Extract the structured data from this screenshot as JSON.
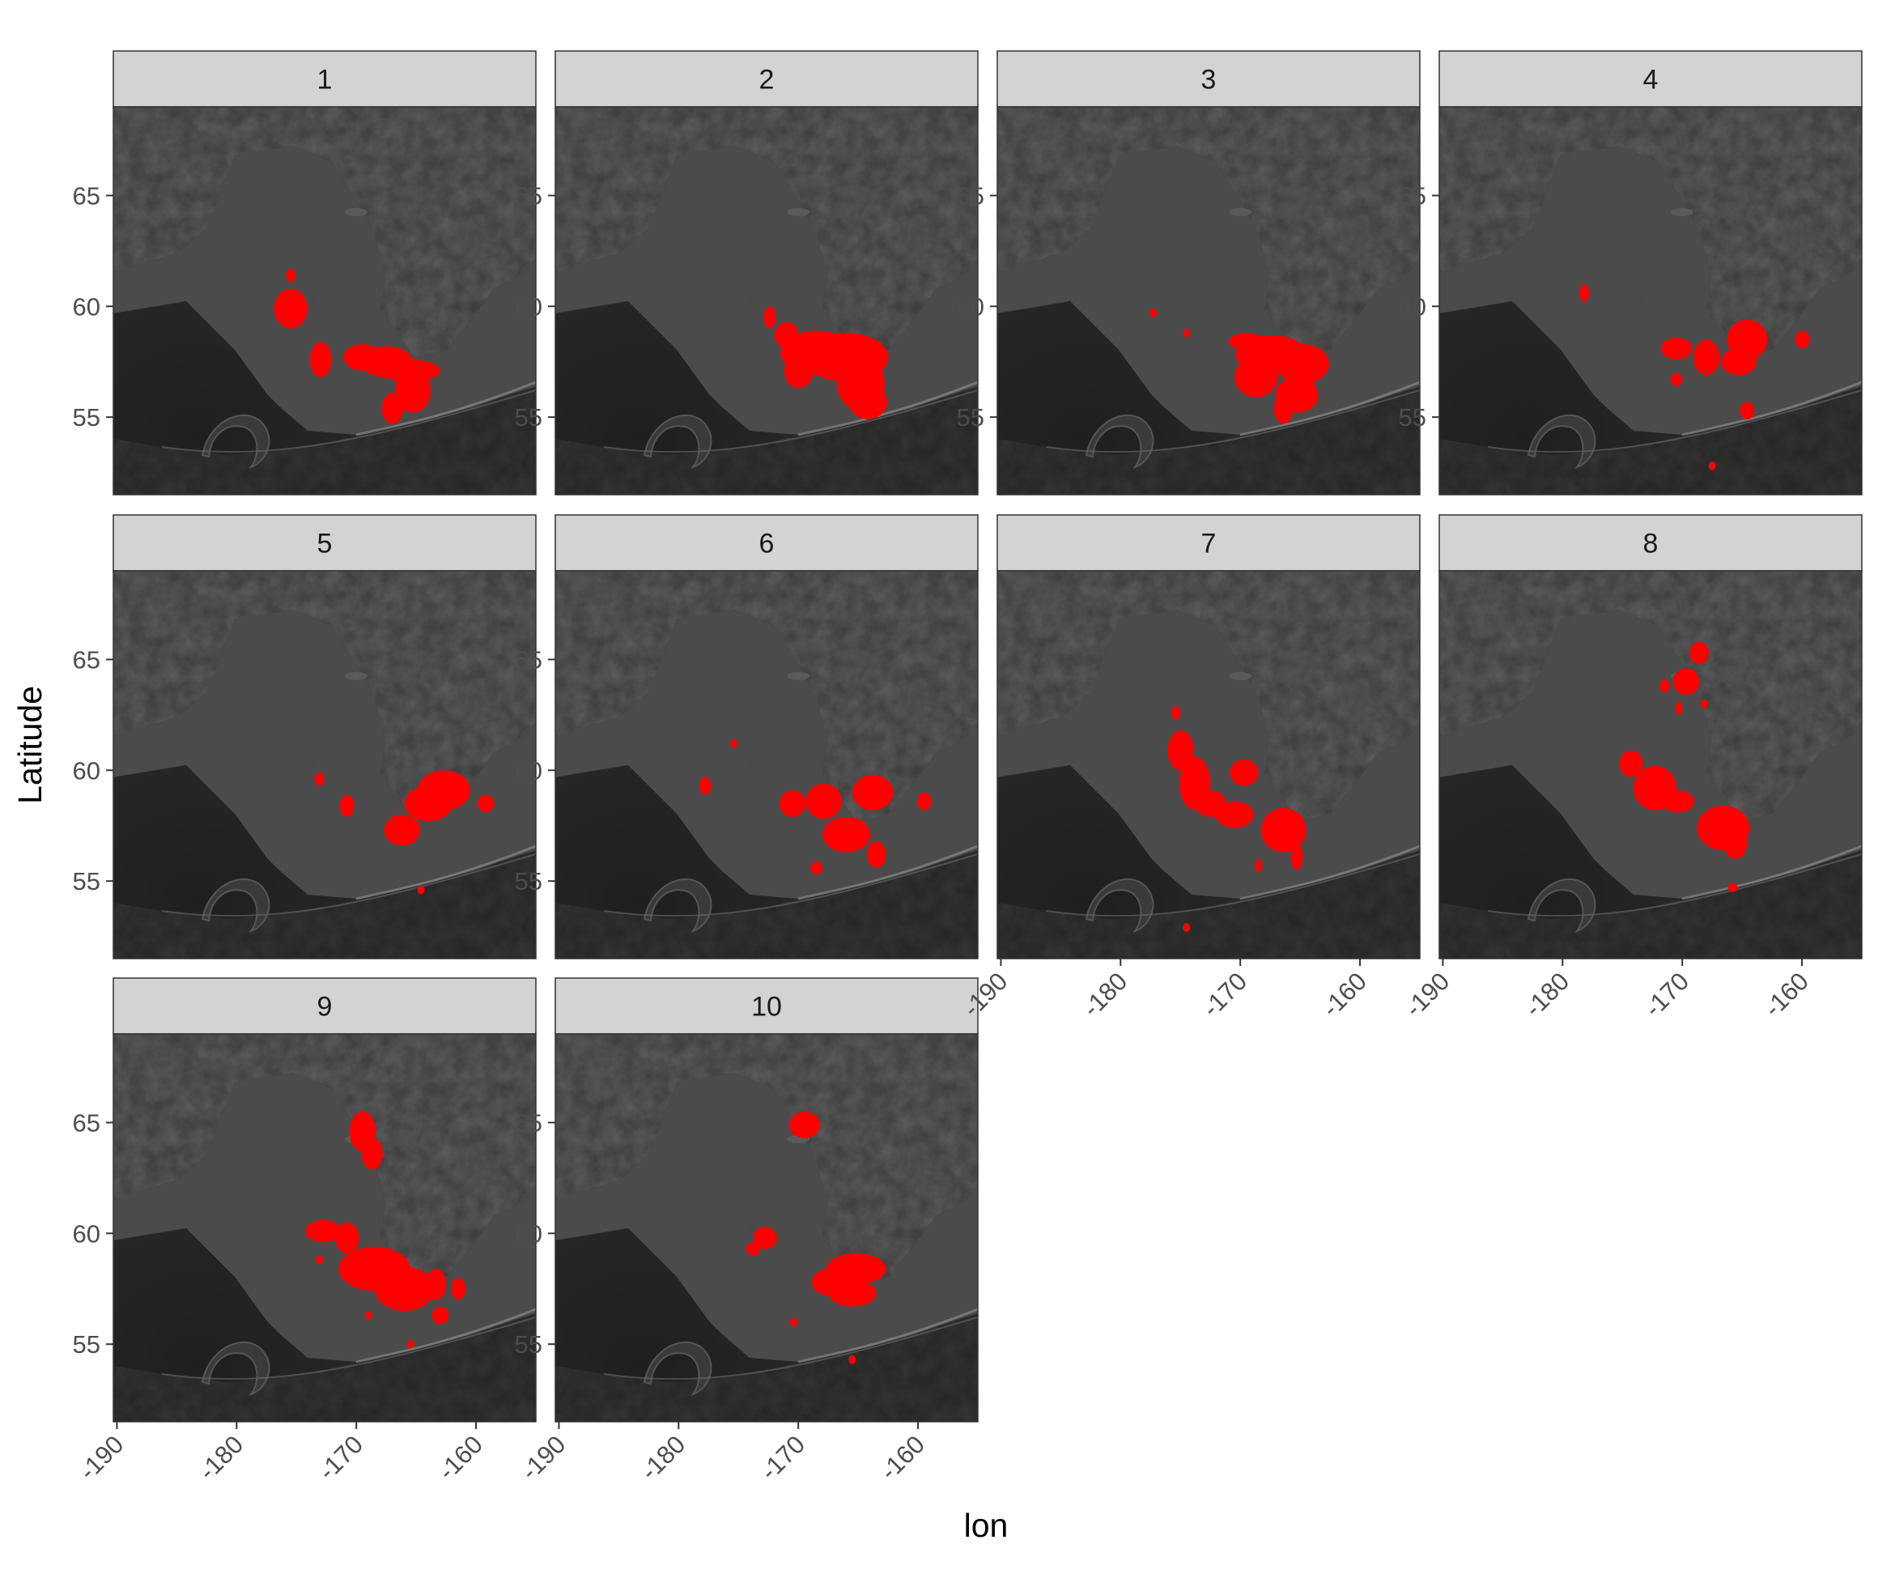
{
  "chart_data": {
    "type": "faceted-map",
    "xlabel": "lon",
    "ylabel": "Latitude",
    "x_ticks": [
      -190,
      -180,
      -170,
      -160
    ],
    "y_ticks": [
      55,
      60,
      65
    ],
    "xlim": [
      -190.3,
      -155
    ],
    "ylim": [
      51.5,
      69.0
    ],
    "colors": {
      "highlight": "#ff0000",
      "strip_fill": "#d3d3d3",
      "panel_border": "#333333",
      "land": "#3f3f3f",
      "shelf": "#4b4b4b",
      "deep_ocean": "#2b2b2b"
    },
    "facets": [
      {
        "label": "1",
        "x_axis_shown": false,
        "y_axis_shown": true,
        "regions": [
          [
            -175.5,
            59.9,
            1.4,
            0.9
          ],
          [
            -173,
            57.6,
            0.9,
            0.8
          ],
          [
            -169.5,
            57.7,
            1.6,
            0.6
          ],
          [
            -167.5,
            57.5,
            2.2,
            0.7
          ],
          [
            -165.6,
            57.1,
            2.6,
            0.5
          ],
          [
            -165.3,
            56.2,
            1.5,
            1
          ],
          [
            -167,
            55.4,
            0.9,
            0.7
          ],
          [
            -175.5,
            61.4,
            0.4,
            0.3
          ]
        ]
      },
      {
        "label": "2",
        "x_axis_shown": false,
        "y_axis_shown": true,
        "regions": [
          [
            -172.4,
            59.5,
            0.5,
            0.5
          ],
          [
            -171,
            58.7,
            1,
            0.6
          ],
          [
            -168.5,
            57.9,
            3,
            1
          ],
          [
            -166,
            57.7,
            3.5,
            1.1
          ],
          [
            -164.8,
            56.5,
            2,
            1.2
          ],
          [
            -164.2,
            55.7,
            1.6,
            0.8
          ],
          [
            -170,
            57.1,
            1.2,
            0.8
          ],
          [
            -164.3,
            57.3,
            1.4,
            0.5
          ]
        ]
      },
      {
        "label": "3",
        "x_axis_shown": false,
        "y_axis_shown": true,
        "regions": [
          [
            -169.5,
            58.4,
            1.5,
            0.4
          ],
          [
            -167.4,
            57.8,
            3,
            0.9
          ],
          [
            -168.7,
            56.8,
            1.8,
            0.9
          ],
          [
            -164.8,
            57.4,
            2.2,
            0.9
          ],
          [
            -165.3,
            56,
            1.8,
            0.8
          ],
          [
            -166.4,
            55.4,
            0.8,
            0.7
          ],
          [
            -177.3,
            59.7,
            0.3,
            0.2
          ],
          [
            -174.5,
            58.8,
            0.3,
            0.2
          ]
        ]
      },
      {
        "label": "4",
        "x_axis_shown": false,
        "y_axis_shown": true,
        "regions": [
          [
            -170.5,
            58.1,
            1.3,
            0.5
          ],
          [
            -168,
            57.7,
            1.1,
            0.8
          ],
          [
            -164.6,
            58.5,
            1.7,
            0.9
          ],
          [
            -165.3,
            57.5,
            1.5,
            0.6
          ],
          [
            -164.6,
            55.3,
            0.6,
            0.4
          ],
          [
            -160,
            58.5,
            0.6,
            0.4
          ],
          [
            -178.2,
            60.6,
            0.4,
            0.4
          ],
          [
            -170.5,
            56.7,
            0.5,
            0.3
          ],
          [
            -167.5,
            52.8,
            0.3,
            0.2
          ]
        ]
      },
      {
        "label": "5",
        "x_axis_shown": false,
        "y_axis_shown": true,
        "regions": [
          [
            -162.7,
            59.1,
            2.2,
            0.9
          ],
          [
            -164,
            58.5,
            2,
            0.8
          ],
          [
            -166.2,
            57.3,
            1.5,
            0.7
          ],
          [
            -170.8,
            58.4,
            0.6,
            0.5
          ],
          [
            -159.2,
            58.5,
            0.7,
            0.4
          ],
          [
            -173.1,
            59.6,
            0.4,
            0.3
          ],
          [
            -164.6,
            54.6,
            0.3,
            0.2
          ]
        ]
      },
      {
        "label": "6",
        "x_axis_shown": false,
        "y_axis_shown": true,
        "regions": [
          [
            -163.8,
            59,
            1.7,
            0.8
          ],
          [
            -167.9,
            58.6,
            1.5,
            0.8
          ],
          [
            -170.5,
            58.5,
            1.1,
            0.6
          ],
          [
            -166,
            57.1,
            2,
            0.8
          ],
          [
            -163.5,
            56.2,
            0.8,
            0.6
          ],
          [
            -159.5,
            58.6,
            0.6,
            0.4
          ],
          [
            -177.8,
            59.3,
            0.5,
            0.4
          ],
          [
            -168.5,
            55.6,
            0.5,
            0.3
          ],
          [
            -175.4,
            61.2,
            0.3,
            0.2
          ]
        ]
      },
      {
        "label": "7",
        "x_axis_shown": true,
        "y_axis_shown": false,
        "regions": [
          [
            -175,
            60.9,
            1.1,
            0.9
          ],
          [
            -173.8,
            59.4,
            1.3,
            1.2
          ],
          [
            -172.5,
            58.5,
            1.3,
            0.6
          ],
          [
            -170.5,
            58,
            1.6,
            0.6
          ],
          [
            -166.4,
            57.3,
            1.9,
            1
          ],
          [
            -169.7,
            59.9,
            1.2,
            0.6
          ],
          [
            -165.3,
            56.1,
            0.5,
            0.6
          ],
          [
            -168.5,
            55.7,
            0.3,
            0.3
          ],
          [
            -175.4,
            62.6,
            0.4,
            0.3
          ],
          [
            -174.5,
            52.9,
            0.3,
            0.2
          ]
        ]
      },
      {
        "label": "8",
        "x_axis_shown": true,
        "y_axis_shown": false,
        "regions": [
          [
            -168.6,
            65.3,
            0.8,
            0.5
          ],
          [
            -169.7,
            64,
            1.1,
            0.6
          ],
          [
            -171.5,
            63.8,
            0.4,
            0.3
          ],
          [
            -174.3,
            60.3,
            1,
            0.6
          ],
          [
            -172.3,
            59.2,
            1.8,
            1
          ],
          [
            -170.4,
            58.6,
            1.4,
            0.5
          ],
          [
            -166.6,
            57.4,
            2.2,
            1
          ],
          [
            -165.6,
            56.7,
            1,
            0.7
          ],
          [
            -170.3,
            62.8,
            0.3,
            0.3
          ],
          [
            -168.2,
            63,
            0.3,
            0.2
          ],
          [
            -165.8,
            54.7,
            0.4,
            0.2
          ]
        ]
      },
      {
        "label": "9",
        "x_axis_shown": true,
        "y_axis_shown": true,
        "regions": [
          [
            -169.5,
            64.6,
            1.1,
            0.9
          ],
          [
            -168.7,
            63.6,
            0.9,
            0.7
          ],
          [
            -172.8,
            60.1,
            1.5,
            0.5
          ],
          [
            -170.8,
            59.8,
            1,
            0.7
          ],
          [
            -168.5,
            58.4,
            3,
            1
          ],
          [
            -166,
            57.5,
            2.5,
            1
          ],
          [
            -163.4,
            57.7,
            0.9,
            0.7
          ],
          [
            -161.5,
            57.5,
            0.6,
            0.5
          ],
          [
            -163,
            56.3,
            0.7,
            0.4
          ],
          [
            -173.1,
            58.8,
            0.3,
            0.2
          ],
          [
            -169,
            56.3,
            0.3,
            0.2
          ],
          [
            -165.5,
            55,
            0.3,
            0.2
          ]
        ]
      },
      {
        "label": "10",
        "x_axis_shown": true,
        "y_axis_shown": true,
        "regions": [
          [
            -169.5,
            64.9,
            1.3,
            0.6
          ],
          [
            -172.8,
            59.8,
            1,
            0.5
          ],
          [
            -173.8,
            59.3,
            0.6,
            0.3
          ],
          [
            -165.2,
            58.4,
            2.5,
            0.7
          ],
          [
            -165.5,
            57.3,
            2,
            0.6
          ],
          [
            -167.5,
            57.8,
            1.4,
            0.6
          ],
          [
            -170.4,
            56,
            0.3,
            0.2
          ],
          [
            -165.5,
            54.3,
            0.3,
            0.2
          ]
        ]
      }
    ]
  }
}
